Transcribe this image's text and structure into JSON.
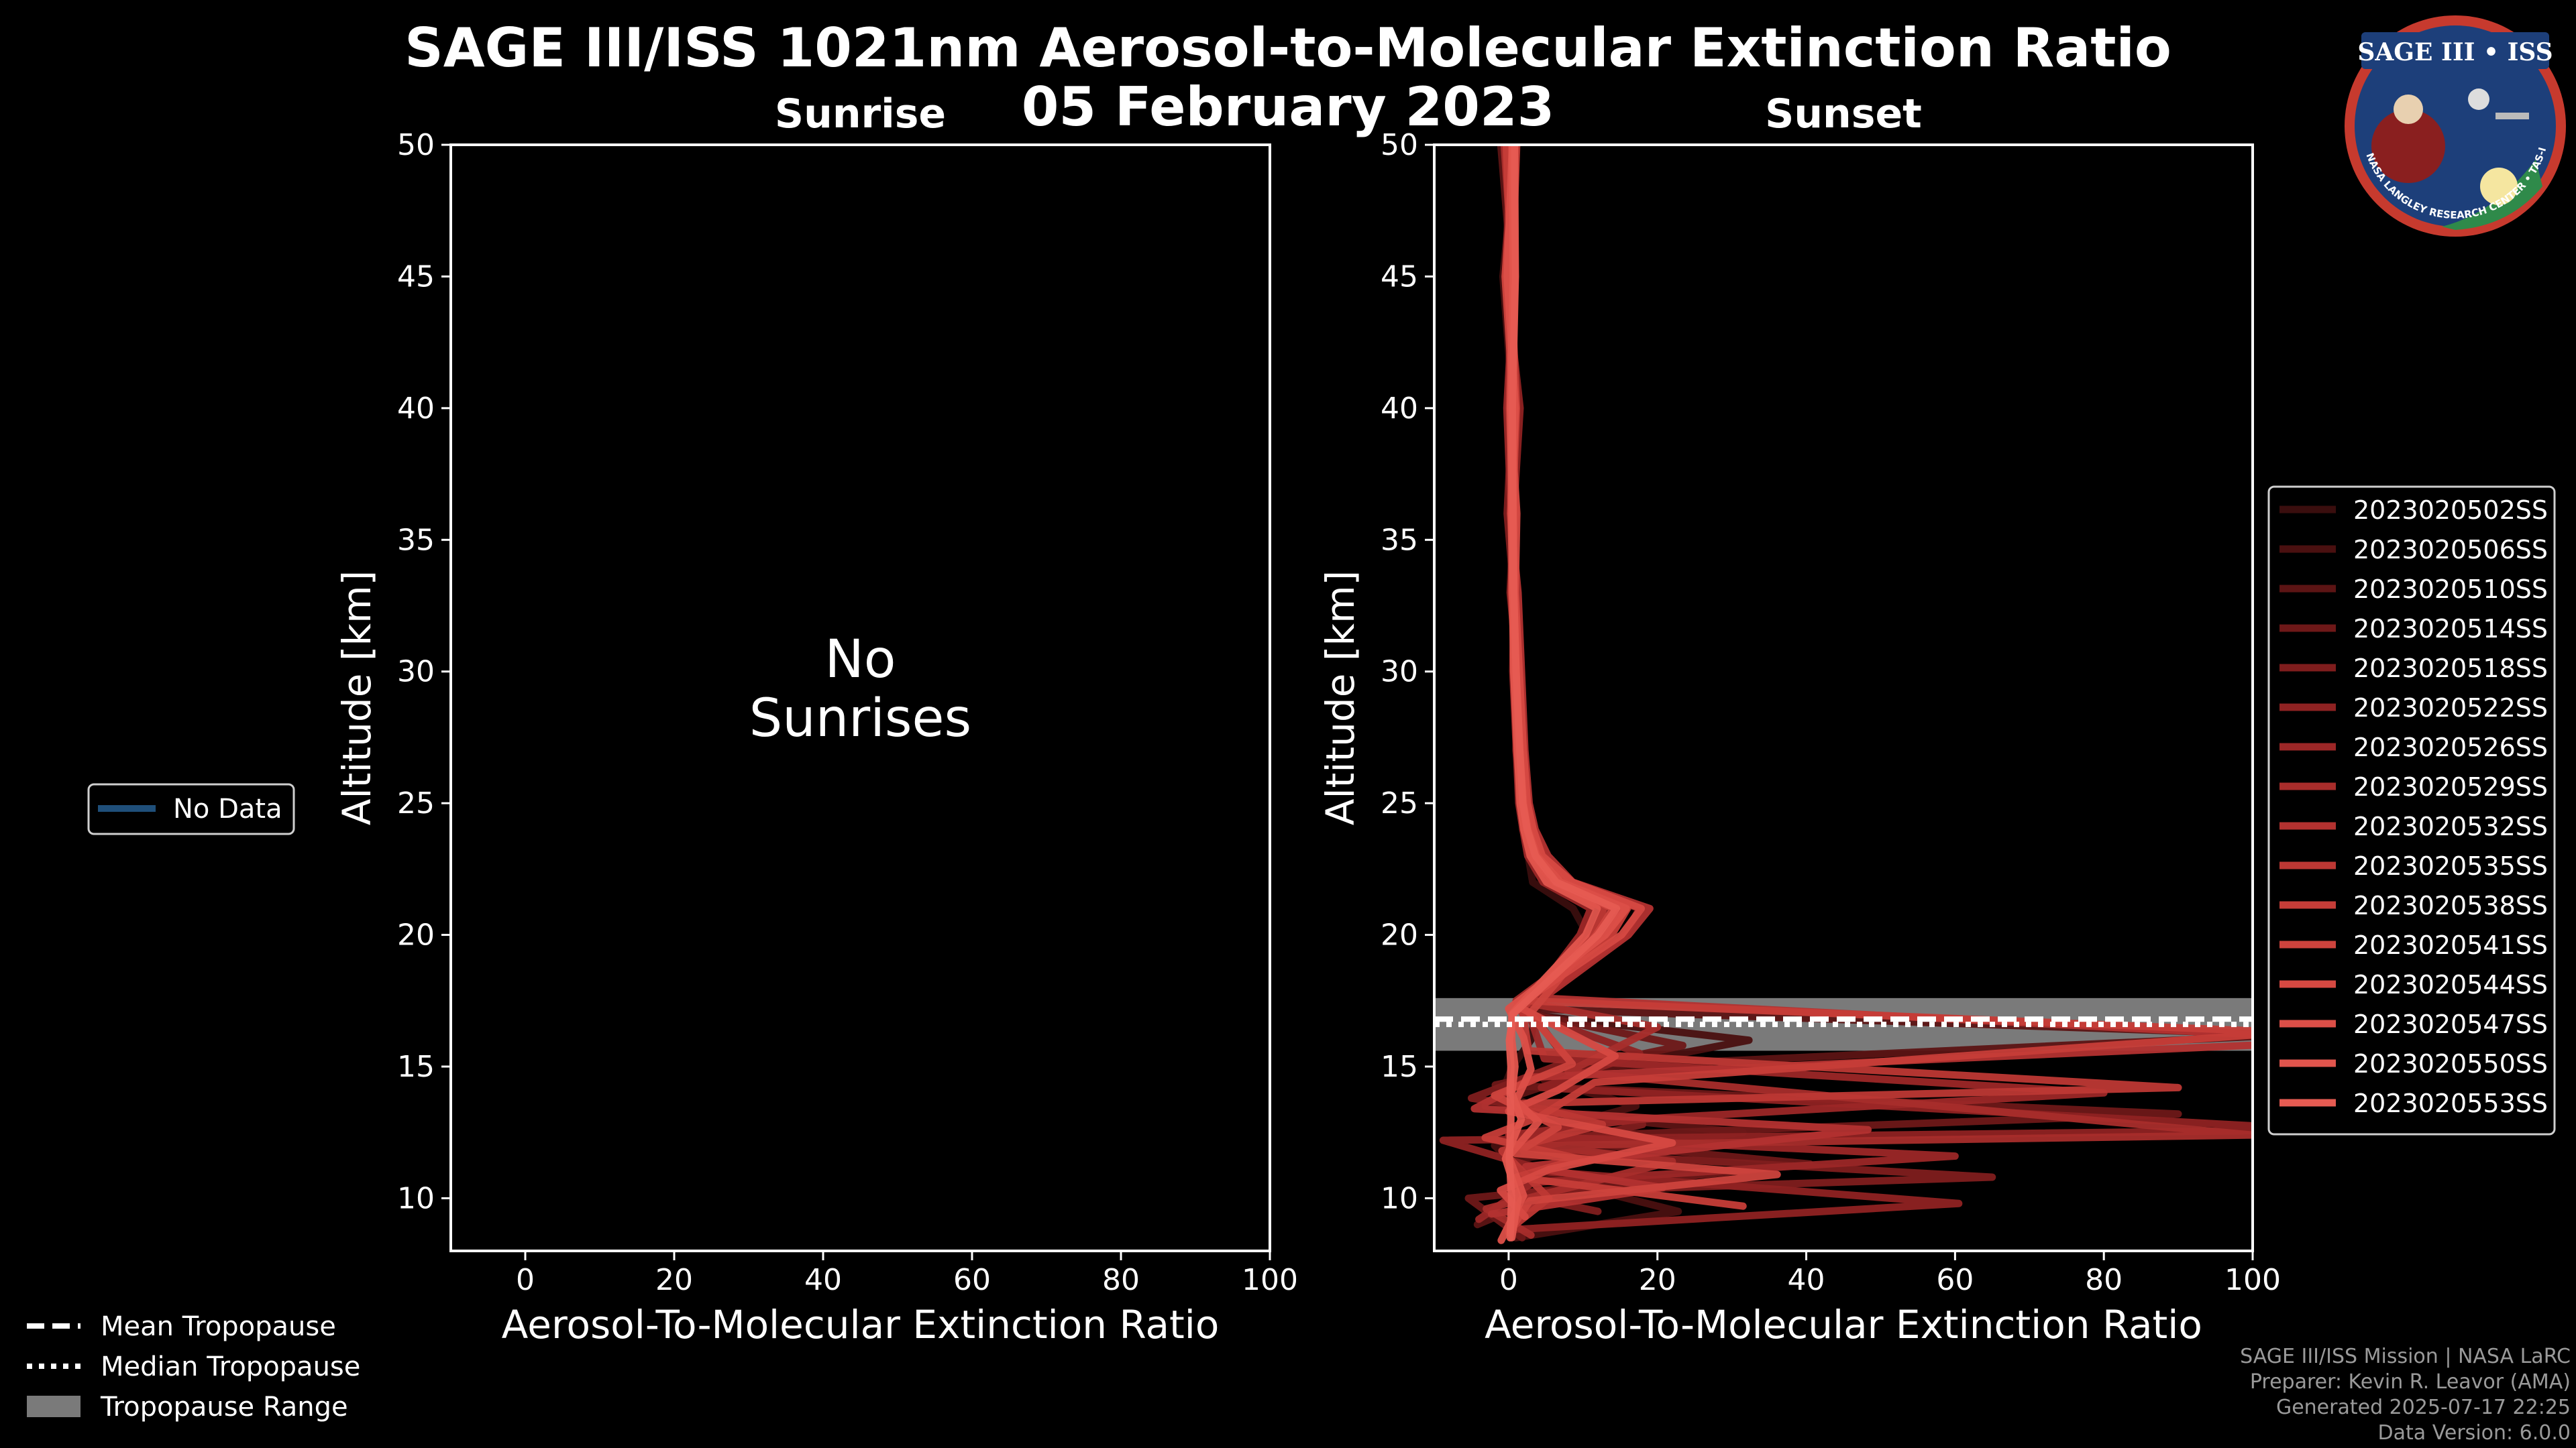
{
  "header": {
    "title_line1": "SAGE III/ISS 1021nm Aerosol-to-Molecular Extinction Ratio",
    "title_line2": "05 February 2023"
  },
  "logo": {
    "name": "SAGE III • ISS",
    "ring_text": "BALL • NASA LANGLEY RESEARCH CENTER • TAS-I • ESA"
  },
  "colors": {
    "background": "#000000",
    "tropopause_band": "#7a7a7a",
    "no_data_line": "#1f4f7a"
  },
  "left_legend": {
    "no_data": "No Data"
  },
  "bottom_legend": {
    "mean": "Mean Tropopause",
    "median": "Median Tropopause",
    "range": "Tropopause Range"
  },
  "footer": {
    "line1": "SAGE III/ISS Mission | NASA LaRC",
    "line2": "Preparer: Kevin R. Leavor (AMA)",
    "line3": "Generated 2025-07-17 22:25",
    "line4": "Data Version: 6.0.0"
  },
  "chart_data": [
    {
      "type": "line",
      "panel": "sunrise",
      "title": "Sunrise",
      "xlabel": "Aerosol-To-Molecular Extinction Ratio",
      "ylabel": "Altitude [km]",
      "xlim": [
        -10,
        100
      ],
      "ylim": [
        8,
        50
      ],
      "xticks": [
        0,
        20,
        40,
        60,
        80,
        100
      ],
      "yticks": [
        10,
        15,
        20,
        25,
        30,
        35,
        40,
        45,
        50
      ],
      "annotation": "No\nSunrises",
      "series": []
    },
    {
      "type": "line",
      "panel": "sunset",
      "title": "Sunset",
      "xlabel": "Aerosol-To-Molecular Extinction Ratio",
      "ylabel": "Altitude [km]",
      "xlim": [
        -10,
        100
      ],
      "ylim": [
        8,
        50
      ],
      "xticks": [
        0,
        20,
        40,
        60,
        80,
        100
      ],
      "yticks": [
        10,
        15,
        20,
        25,
        30,
        35,
        40,
        45,
        50
      ],
      "tropopause": {
        "mean": 16.8,
        "median": 16.6,
        "range": [
          15.6,
          17.6
        ]
      },
      "series": [
        {
          "name": "2023020502SS",
          "color": "#3a0e0e",
          "scale": 0.85,
          "x": [
            0.3,
            1.2,
            -0.9,
            9,
            -1.1,
            0.6,
            3.5,
            4.2,
            12.5,
            10.2,
            3.8,
            3.1,
            2.6,
            2.0,
            1.5,
            1.3,
            0.8,
            0.0,
            1.2,
            -0.6,
            0.8
          ],
          "y": [
            9,
            11,
            12,
            13,
            14,
            15,
            16,
            17,
            20,
            21,
            22,
            23,
            24,
            25,
            27,
            30,
            33,
            36,
            40,
            45,
            50
          ]
        },
        {
          "name": "2023020506SS",
          "color": "#4a1010",
          "scale": 0.95,
          "x": [
            1.0,
            24,
            2,
            -2,
            18,
            5,
            34,
            2,
            12.2,
            14,
            6,
            3.0,
            2.2,
            1.8,
            1.6,
            1.2,
            0.4,
            0.3,
            0.6,
            -0.8,
            1.0
          ],
          "y": [
            8.5,
            9.5,
            11,
            12,
            13.5,
            14.5,
            16,
            17,
            20,
            21,
            22,
            23,
            24,
            25,
            27,
            30,
            33,
            36,
            40,
            45,
            50
          ]
        },
        {
          "name": "2023020510SS",
          "color": "#5c1414",
          "scale": 1.05,
          "x": [
            -4,
            8,
            1,
            30,
            -3,
            12,
            100,
            2,
            13,
            15,
            7,
            4,
            2.6,
            2.0,
            1.8,
            1.0,
            0.6,
            0.5,
            0.2,
            0.4,
            -1.0
          ],
          "y": [
            9,
            10.5,
            11.5,
            12.5,
            13.5,
            15,
            16.2,
            17.2,
            20,
            21,
            22,
            23,
            24,
            25,
            27,
            30,
            33,
            36,
            40,
            45,
            50
          ]
        },
        {
          "name": "2023020514SS",
          "color": "#6e1818",
          "scale": 0.9,
          "x": [
            2,
            -6,
            45,
            3,
            100,
            -2,
            26,
            3,
            12.8,
            14.5,
            6.2,
            3.4,
            2.1,
            1.9,
            1.1,
            1.4,
            0.2,
            0.8,
            0.9,
            -0.2,
            1.1
          ],
          "y": [
            8.5,
            10,
            11.3,
            12.3,
            13.2,
            14.3,
            15.8,
            17,
            20,
            21,
            22,
            23,
            24,
            25,
            27,
            30,
            33,
            36,
            40,
            45,
            50
          ]
        },
        {
          "name": "2023020518SS",
          "color": "#7f1d1d",
          "scale": 1.0,
          "x": [
            12,
            0,
            65,
            2,
            18,
            -5,
            8,
            2,
            13.5,
            15.5,
            8,
            3.7,
            2.5,
            1.6,
            1.4,
            0.9,
            0.7,
            -0.2,
            0.5,
            0.1,
            0.6
          ],
          "y": [
            9.5,
            10.2,
            10.8,
            11.8,
            12.8,
            13.8,
            15.2,
            17.4,
            20,
            21,
            22,
            23,
            24,
            25,
            27,
            30,
            33,
            36,
            40,
            45,
            50
          ]
        },
        {
          "name": "2023020522SS",
          "color": "#8f2222",
          "scale": 1.1,
          "x": [
            0,
            55,
            5,
            -8,
            100,
            4,
            16,
            1.5,
            14.2,
            16,
            7,
            4.3,
            2.9,
            2.3,
            1.5,
            1.1,
            0.5,
            0.6,
            1.4,
            -0.4,
            0.3
          ],
          "y": [
            8.8,
            9.8,
            11,
            12.2,
            12.6,
            14.2,
            15.5,
            17.1,
            20,
            21,
            22,
            23,
            24,
            25,
            27,
            30,
            33,
            36,
            40,
            45,
            50
          ]
        },
        {
          "name": "2023020526SS",
          "color": "#9c2727",
          "scale": 0.8,
          "x": [
            -5,
            4,
            75,
            0,
            22,
            100,
            6,
            3,
            12,
            13.8,
            5.8,
            3.2,
            2.4,
            1.7,
            1.3,
            0.7,
            0.9,
            0.4,
            -0.3,
            0.9,
            0.2
          ],
          "y": [
            9.2,
            10.6,
            11.6,
            12.4,
            13,
            14,
            15.3,
            17.3,
            20,
            21,
            22,
            23,
            24,
            25,
            27,
            30,
            33,
            36,
            40,
            45,
            50
          ]
        },
        {
          "name": "2023020529SS",
          "color": "#a82d2b",
          "scale": 1.0,
          "x": [
            3,
            -3,
            22,
            4,
            100,
            8,
            20,
            1,
            13,
            15,
            6.5,
            3.6,
            2.7,
            2.1,
            1.7,
            1.0,
            0.3,
            0.9,
            0.4,
            0.6,
            -0.6
          ],
          "y": [
            8.6,
            9.6,
            11.4,
            12,
            12.4,
            14.8,
            16.5,
            17.5,
            20,
            21,
            22,
            23,
            24,
            25,
            27,
            30,
            33,
            36,
            40,
            45,
            50
          ]
        },
        {
          "name": "2023020532SS",
          "color": "#b33230",
          "scale": 1.15,
          "x": [
            -2,
            18,
            2,
            42,
            -4,
            3,
            100,
            4,
            14,
            16.5,
            7.5,
            4.6,
            3.1,
            2.4,
            1.9,
            1.5,
            1.1,
            0.2,
            0.8,
            -0.1,
            0.7
          ],
          "y": [
            9.4,
            10.4,
            11.2,
            12.6,
            13.4,
            14.6,
            16,
            17.6,
            20,
            21,
            22,
            23,
            24,
            25,
            27,
            30,
            33,
            36,
            40,
            45,
            50
          ]
        },
        {
          "name": "2023020535SS",
          "color": "#bd3834",
          "scale": 0.9,
          "x": [
            1,
            6,
            -1,
            14,
            2,
            100,
            3,
            2,
            12.6,
            14.2,
            6.8,
            3.3,
            2.3,
            1.9,
            1.2,
            0.8,
            0.6,
            0.7,
            0.1,
            0.5,
            1.2
          ],
          "y": [
            9,
            10,
            11.8,
            12.8,
            13.6,
            14.2,
            15.6,
            17.2,
            20,
            21,
            22,
            23,
            24,
            25,
            27,
            30,
            33,
            36,
            40,
            45,
            50
          ]
        },
        {
          "name": "2023020538SS",
          "color": "#c63d38",
          "scale": 1.05,
          "x": [
            30,
            1,
            9,
            -3,
            4,
            11,
            100,
            2,
            13.2,
            15.2,
            7.2,
            3.9,
            2.8,
            2.2,
            1.6,
            1.2,
            0.4,
            0.5,
            1.0,
            0.3,
            -0.3
          ],
          "y": [
            9.7,
            10.8,
            11.5,
            12.3,
            13.1,
            14.4,
            16.3,
            17.5,
            20,
            21,
            22,
            23,
            24,
            25,
            27,
            30,
            33,
            36,
            40,
            45,
            50
          ]
        },
        {
          "name": "2023020541SS",
          "color": "#ce433d",
          "scale": 0.95,
          "x": [
            0,
            3,
            38,
            1,
            7,
            -2,
            9,
            3,
            12.4,
            14.8,
            6.6,
            3.5,
            2.5,
            2.0,
            1.4,
            0.9,
            0.7,
            0.3,
            0.7,
            -0.5,
            0.9
          ],
          "y": [
            8.7,
            9.9,
            10.9,
            11.7,
            12.7,
            13.9,
            15.1,
            17,
            20,
            21,
            22,
            23,
            24,
            25,
            27,
            30,
            33,
            36,
            40,
            45,
            50
          ]
        },
        {
          "name": "2023020544SS",
          "color": "#d64942",
          "scale": 1.1,
          "x": [
            2,
            -1,
            5,
            20,
            0,
            6,
            13,
            1,
            13.8,
            16.2,
            7.8,
            4.1,
            3.0,
            2.3,
            1.8,
            1.3,
            0.8,
            1.0,
            0.2,
            0.8,
            0.4
          ],
          "y": [
            9.3,
            10.3,
            11.1,
            12.1,
            13.3,
            14.1,
            15.4,
            17.3,
            20,
            21,
            22,
            23,
            24,
            25,
            27,
            30,
            33,
            36,
            40,
            45,
            50
          ]
        },
        {
          "name": "2023020547SS",
          "color": "#dc4f48",
          "scale": 1.0,
          "x": [
            -1,
            2,
            0,
            4,
            1,
            3,
            2,
            0,
            13,
            15.8,
            7,
            3.8,
            2.6,
            2.0,
            1.5,
            1.0,
            0.5,
            0.4,
            0.9,
            -0.2,
            0.5
          ],
          "y": [
            8.4,
            10.1,
            11.6,
            12.9,
            13.7,
            14.9,
            16.1,
            17.2,
            20,
            21,
            22,
            23,
            24,
            25,
            27,
            30,
            33,
            36,
            40,
            45,
            50
          ]
        },
        {
          "name": "2023020550SS",
          "color": "#e1554d",
          "scale": 0.85,
          "x": [
            0.5,
            1.5,
            -0.5,
            2,
            0.5,
            1,
            0.5,
            0.5,
            12.2,
            14,
            6,
            3.4,
            2.4,
            1.8,
            1.4,
            0.8,
            0.6,
            0.5,
            0.3,
            0.7,
            0.6
          ],
          "y": [
            8.5,
            10,
            11.5,
            13,
            14,
            15,
            16,
            17,
            20,
            21,
            22,
            23,
            24,
            25,
            27,
            30,
            33,
            36,
            40,
            45,
            50
          ]
        },
        {
          "name": "2023020553SS",
          "color": "#e65b52",
          "scale": 1.0,
          "x": [
            0.2,
            0.4,
            0.1,
            0.3,
            0.2,
            0.3,
            0.1,
            0.6,
            12,
            14.5,
            6.4,
            3.6,
            2.5,
            1.9,
            1.5,
            1.0,
            0.7,
            0.6,
            0.5,
            0.9,
            0.8
          ],
          "y": [
            8.5,
            10,
            11.5,
            13,
            14,
            15,
            16,
            17,
            20,
            21,
            22,
            23,
            24,
            25,
            27,
            30,
            33,
            36,
            40,
            45,
            50
          ]
        }
      ]
    }
  ]
}
